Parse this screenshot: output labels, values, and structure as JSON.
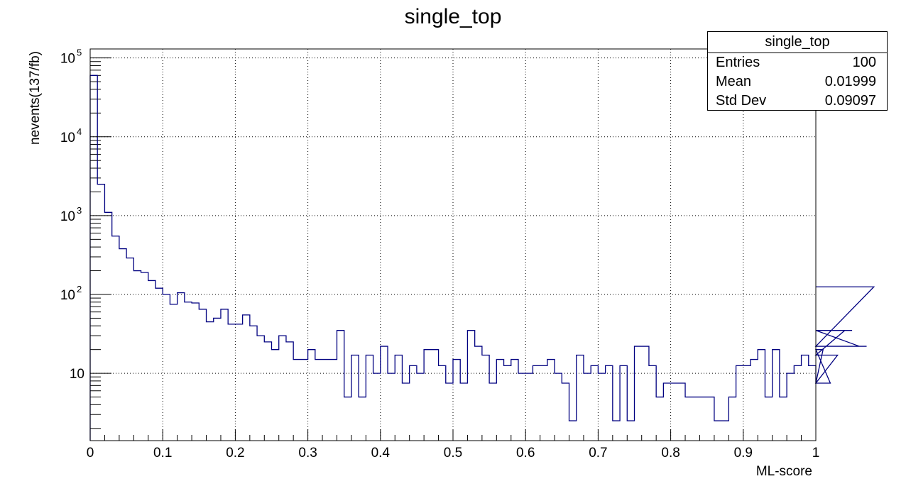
{
  "stats_box": {
    "title": "single_top",
    "rows": [
      {
        "label": "Entries",
        "value": "100"
      },
      {
        "label": "Mean",
        "value": "0.01999"
      },
      {
        "label": "Std Dev",
        "value": "0.09097"
      }
    ]
  },
  "colors": {
    "line": "#000080",
    "grid": "#000000",
    "axis": "#000000"
  },
  "chart_data": {
    "type": "histogram-step",
    "title": "single_top",
    "xlabel": "ML-score",
    "ylabel": "nevents(137/fb)",
    "xlim": [
      0,
      1
    ],
    "ylim": [
      1.4,
      130000
    ],
    "yscale": "log",
    "grid": true,
    "bin_width": 0.01,
    "x_ticks": [
      "0",
      "0.1",
      "0.2",
      "0.3",
      "0.4",
      "0.5",
      "0.6",
      "0.7",
      "0.8",
      "0.9",
      "1"
    ],
    "y_ticks": [
      {
        "value": 10,
        "base": "10",
        "exp": ""
      },
      {
        "value": 100,
        "base": "10",
        "exp": "2"
      },
      {
        "value": 1000,
        "base": "10",
        "exp": "3"
      },
      {
        "value": 10000,
        "base": "10",
        "exp": "4"
      },
      {
        "value": 100000,
        "base": "10",
        "exp": "5"
      }
    ],
    "series": [
      {
        "values": [
          60000,
          2500,
          1100,
          550,
          380,
          290,
          200,
          190,
          150,
          120,
          100,
          75,
          105,
          80,
          78,
          65,
          45,
          50,
          65,
          42,
          42,
          55,
          40,
          30,
          25,
          20,
          30,
          25,
          15,
          15,
          20,
          15,
          15,
          15,
          35,
          5,
          17,
          5,
          17,
          10,
          22,
          10,
          17,
          7.5,
          12.5,
          10,
          20,
          20,
          12.5,
          7.5,
          15,
          7.5,
          35,
          22,
          17,
          7.5,
          15,
          12.5,
          15,
          10,
          10,
          12.5,
          12.5,
          15,
          10,
          7.5,
          2.5,
          17,
          10,
          12.5,
          10,
          12.5,
          2.5,
          12.5,
          2.5,
          22,
          22,
          12.5,
          5,
          7.5,
          7.5,
          7.5,
          5,
          5,
          5,
          5,
          2.5,
          2.5,
          5,
          12.5,
          12.5,
          15,
          20,
          5,
          20,
          5,
          10,
          12.5,
          17,
          12.5,
          7.5,
          20,
          7.5,
          17,
          35,
          35,
          22,
          22,
          125
        ]
      }
    ]
  }
}
